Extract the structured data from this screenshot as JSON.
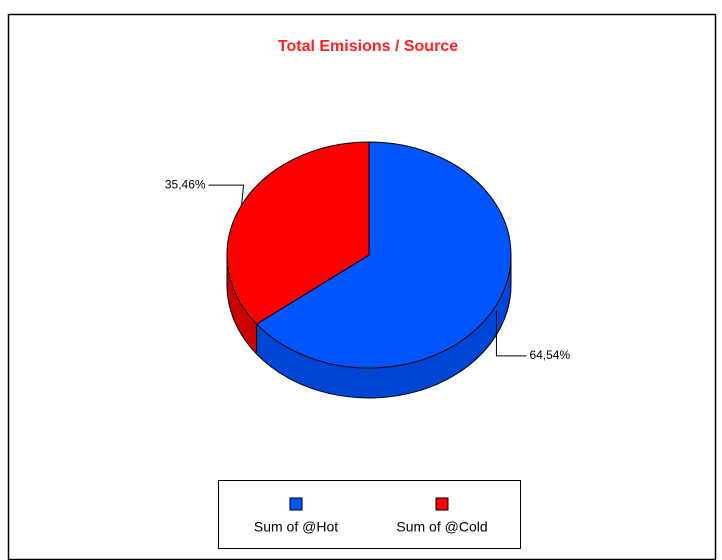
{
  "chart_data": {
    "type": "pie",
    "title": "Total Emisions / Source",
    "categories": [
      "Sum of @Hot",
      "Sum of @Cold"
    ],
    "values": [
      64.54,
      35.46
    ],
    "value_labels": [
      "64,54%",
      "35,46%"
    ],
    "colors": [
      "#0055ff",
      "#ff0000"
    ],
    "side_colors": [
      "#0046d6",
      "#cc0000"
    ],
    "legend": "bottom"
  }
}
